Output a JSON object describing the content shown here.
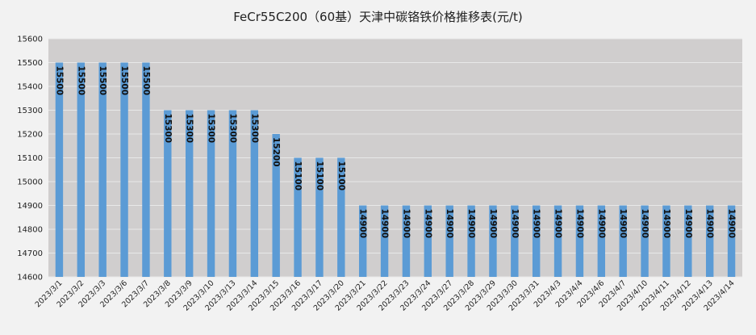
{
  "chart_data": {
    "type": "bar",
    "title": "FeCr55C200（60基）天津中碳铬铁价格推移表(元/t)",
    "xlabel": "",
    "ylabel": "",
    "categories": [
      "2023/3/1",
      "2023/3/2",
      "2023/3/3",
      "2023/3/6",
      "2023/3/7",
      "2023/3/8",
      "2023/3/9",
      "2023/3/10",
      "2023/3/13",
      "2023/3/14",
      "2023/3/15",
      "2023/3/16",
      "2023/3/17",
      "2023/3/20",
      "2023/3/21",
      "2023/3/22",
      "2023/3/23",
      "2023/3/24",
      "2023/3/27",
      "2023/3/28",
      "2023/3/29",
      "2023/3/30",
      "2023/3/31",
      "2023/4/3",
      "2023/4/4",
      "2023/4/6",
      "2023/4/7",
      "2023/4/10",
      "2023/4/11",
      "2023/4/12",
      "2023/4/13",
      "2023/4/14"
    ],
    "values": [
      15500,
      15500,
      15500,
      15500,
      15500,
      15300,
      15300,
      15300,
      15300,
      15300,
      15200,
      15100,
      15100,
      15100,
      14900,
      14900,
      14900,
      14900,
      14900,
      14900,
      14900,
      14900,
      14900,
      14900,
      14900,
      14900,
      14900,
      14900,
      14900,
      14900,
      14900,
      14900
    ],
    "ylim": [
      14600,
      15600
    ],
    "yticks": [
      14600,
      14700,
      14800,
      14900,
      15000,
      15100,
      15200,
      15300,
      15400,
      15500,
      15600
    ],
    "grid": true,
    "legend": "none",
    "colors": {
      "bar": "#5b9bd5",
      "plot_bg": "#d0cece",
      "grid": "#e8e8e8",
      "page_bg": "#f2f2f2"
    }
  }
}
